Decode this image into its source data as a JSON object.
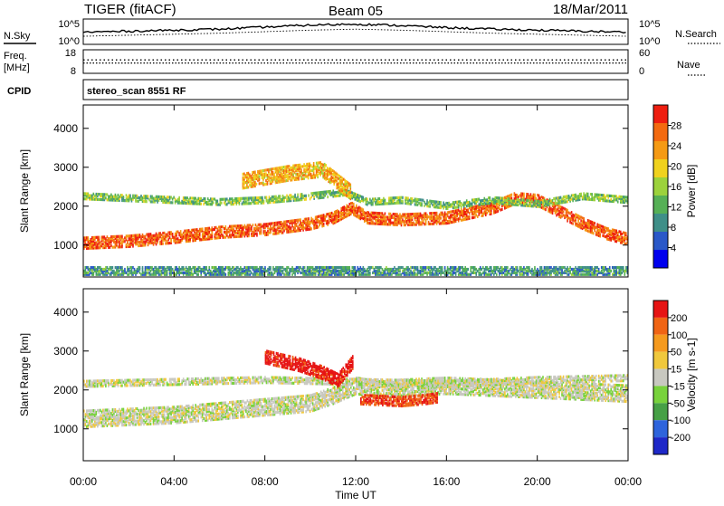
{
  "header": {
    "station": "TIGER (fitACF)",
    "beam": "Beam 05",
    "date": "18/Mar/2011"
  },
  "sky_panel": {
    "left_label": "N.Sky",
    "right_label": "N.Search",
    "left_ticks": [
      "10^5",
      "10^0"
    ],
    "right_ticks": [
      "10^5",
      "10^0"
    ]
  },
  "freq_panel": {
    "left_label_1": "Freq.",
    "left_label_2": "[MHz]",
    "right_label": "Nave",
    "left_ticks": [
      "18",
      "8"
    ],
    "right_ticks": [
      "60",
      "0"
    ]
  },
  "cpid": {
    "label": "CPID",
    "value": "stereo_scan 8551 RF"
  },
  "x_axis": {
    "label": "Time UT",
    "ticks": [
      "00:00",
      "04:00",
      "08:00",
      "12:00",
      "16:00",
      "20:00",
      "00:00"
    ]
  },
  "power_panel": {
    "ylabel": "Slant Range [km]",
    "yticks": [
      "4000",
      "3000",
      "2000",
      "1000"
    ],
    "colorbar_label": "Power [dB]",
    "colorbar_ticks": [
      "28",
      "24",
      "20",
      "16",
      "12",
      "8",
      "4"
    ],
    "colors": [
      "#0000ee",
      "#2a58c8",
      "#3f8f88",
      "#56b056",
      "#9cd23c",
      "#f0d21e",
      "#f59a14",
      "#f36a10",
      "#ee1e10"
    ]
  },
  "velocity_panel": {
    "ylabel": "Slant Range [km]",
    "yticks": [
      "4000",
      "3000",
      "2000",
      "1000"
    ],
    "colorbar_label": "Velocity [m s-1]",
    "colorbar_ticks": [
      "200",
      "100",
      "50",
      "15",
      "-15",
      "-50",
      "-100",
      "-200"
    ],
    "colors": [
      "#1e28c8",
      "#2e64dc",
      "#46a046",
      "#78d23c",
      "#c8c8c0",
      "#f0c83c",
      "#f59a1e",
      "#f06414",
      "#e61414"
    ]
  },
  "chart_data": [
    {
      "type": "heatmap",
      "title": "Power",
      "xlabel": "Time UT",
      "ylabel": "Slant Range [km]",
      "xlim": [
        0,
        24
      ],
      "ylim": [
        180,
        4600
      ],
      "x_unit": "hours UT",
      "colorbar": {
        "label": "Power [dB]",
        "range": [
          0,
          32
        ]
      },
      "layers": [
        {
          "name": "main band",
          "x": [
            0,
            2,
            4,
            6,
            8,
            10,
            11,
            11.8,
            12.5,
            14,
            16,
            18,
            19,
            20,
            21,
            22,
            23,
            24
          ],
          "y": [
            1100,
            1150,
            1250,
            1380,
            1450,
            1600,
            1750,
            2000,
            1750,
            1700,
            1750,
            2000,
            2250,
            2200,
            1900,
            1600,
            1350,
            1200
          ],
          "thickness_km": 300,
          "value_db": 27
        },
        {
          "name": "upper band",
          "x": [
            0,
            2,
            4,
            6,
            8,
            10,
            11.5,
            12.5,
            14,
            16,
            18,
            20,
            22,
            24
          ],
          "y": [
            2300,
            2250,
            2200,
            2150,
            2200,
            2300,
            2400,
            2150,
            2200,
            2050,
            2200,
            2100,
            2300,
            2200
          ],
          "thickness_km": 150,
          "value_db": 14
        },
        {
          "name": "high range patch",
          "x": [
            7,
            9,
            10.5,
            11.8
          ],
          "y": [
            2700,
            2900,
            3000,
            2400
          ],
          "thickness_km": 400,
          "value_db": 22
        },
        {
          "name": "ground clutter",
          "x": [
            0,
            24
          ],
          "y": [
            380,
            380
          ],
          "thickness_km": 200,
          "value_db": 10
        }
      ]
    },
    {
      "type": "heatmap",
      "title": "Velocity",
      "xlabel": "Time UT",
      "ylabel": "Slant Range [km]",
      "xlim": [
        0,
        24
      ],
      "ylim": [
        180,
        4600
      ],
      "x_unit": "hours UT",
      "colorbar": {
        "label": "Velocity [m s-1]",
        "range": [
          -200,
          200
        ]
      },
      "layers": [
        {
          "name": "ground scatter band",
          "x": [
            0,
            2,
            4,
            6,
            8,
            10,
            11,
            12,
            13,
            14,
            16,
            18,
            20,
            22,
            24
          ],
          "y": [
            1300,
            1350,
            1400,
            1500,
            1600,
            1700,
            1900,
            2150,
            2050,
            2100,
            2150,
            2100,
            2050,
            2000,
            1950
          ],
          "thickness_km": 420,
          "value_ms": 0
        },
        {
          "name": "upper ground scatter",
          "x": [
            0,
            4,
            8,
            12,
            16,
            20,
            24
          ],
          "y": [
            2200,
            2250,
            2300,
            2250,
            2200,
            2300,
            2350
          ],
          "thickness_km": 150,
          "value_ms": 0
        },
        {
          "name": "ionospheric scatter 12-15h",
          "x": [
            12.2,
            13,
            14,
            15,
            15.6
          ],
          "y": [
            1800,
            1780,
            1750,
            1800,
            1850
          ],
          "thickness_km": 250,
          "value_ms": 150
        },
        {
          "name": "ionospheric scatter 10-12h",
          "x": [
            8,
            9.5,
            10.5,
            11.2,
            11.9
          ],
          "y": [
            2900,
            2700,
            2500,
            2300,
            2800
          ],
          "thickness_km": 350,
          "value_ms": 180
        }
      ]
    },
    {
      "type": "line",
      "title": "N.Sky / N.Search",
      "x": [
        0,
        2,
        4,
        6,
        8,
        10,
        12,
        14,
        16,
        18,
        20,
        22,
        24
      ],
      "series": [
        {
          "name": "N.Sky",
          "values": [
            2.4,
            2.6,
            2.8,
            3.0,
            3.4,
            3.8,
            4.0,
            3.7,
            3.3,
            3.0,
            2.8,
            2.6,
            2.4
          ]
        },
        {
          "name": "N.Search",
          "values": [
            1.6,
            1.8,
            2.0,
            2.2,
            2.5,
            2.8,
            3.0,
            2.8,
            2.5,
            2.2,
            2.0,
            1.8,
            1.6
          ]
        }
      ]
    },
    {
      "type": "line",
      "title": "Freq / Nave",
      "x": [
        0,
        24
      ],
      "series": [
        {
          "name": "Freq",
          "values": [
            14,
            14
          ]
        },
        {
          "name": "Nave",
          "values": [
            27,
            27
          ]
        }
      ]
    }
  ]
}
